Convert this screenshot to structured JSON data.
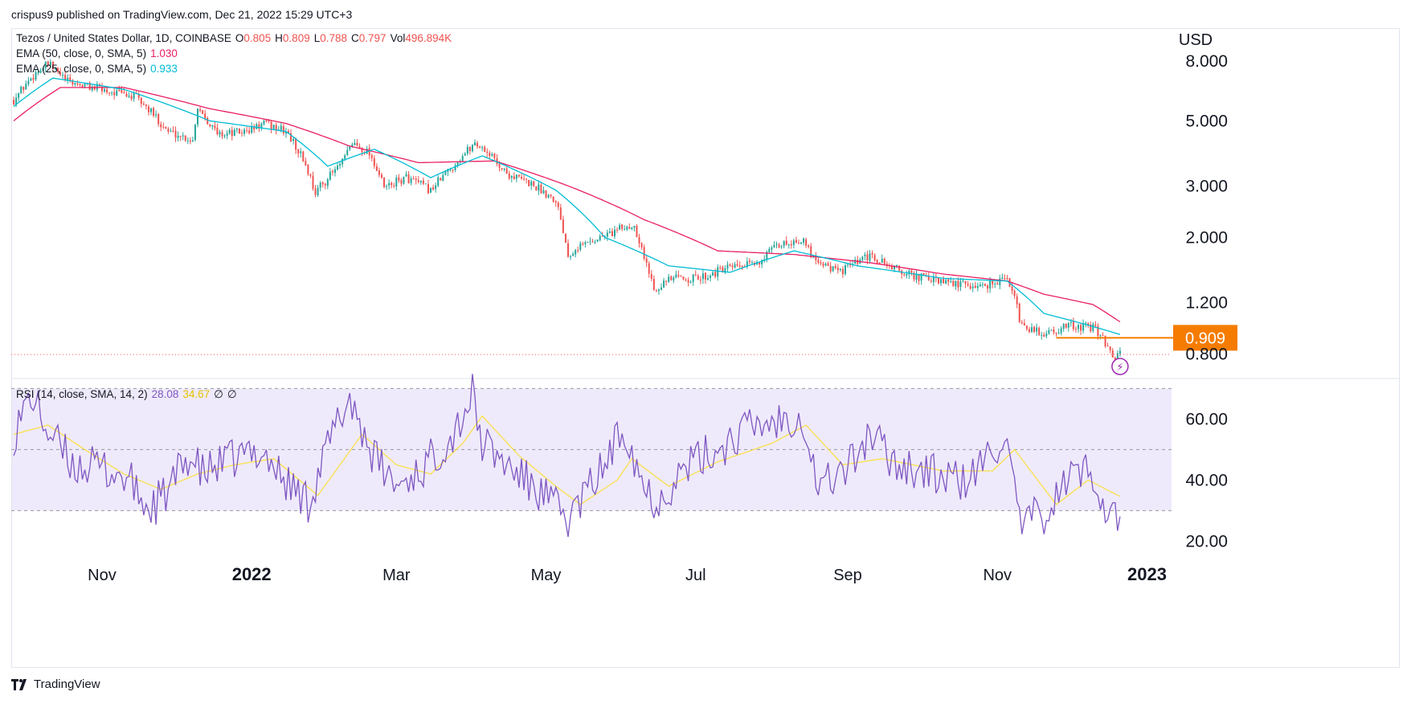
{
  "header": {
    "text": "crispus9 published on TradingView.com, Dec 21, 2022 15:29 UTC+3"
  },
  "legend": {
    "symbol": "Tezos / United States Dollar, 1D, COINBASE",
    "o_label": "O",
    "o": "0.805",
    "h_label": "H",
    "h": "0.809",
    "l_label": "L",
    "l": "0.788",
    "c_label": "C",
    "c": "0.797",
    "vol_label": "Vol",
    "vol": "496.894K",
    "ema50_label": "EMA (50, close, 0, SMA, 5)",
    "ema50_value": "1.030",
    "ema25_label": "EMA (25, close, 0, SMA, 5)",
    "ema25_value": "0.933",
    "rsi_label": "RSI (14, close, SMA, 14, 2)",
    "rsi_value": "28.08",
    "rsi_ma_value": "34.67",
    "rsi_extra1": "∅",
    "rsi_extra2": "∅"
  },
  "currency": "USD",
  "footer": {
    "brand": "TradingView"
  },
  "colors": {
    "up": "#26a69a",
    "down": "#ef5350",
    "ema50": "#e91e63",
    "ema25": "#00bcd4",
    "rsi": "#7e57c2",
    "rsi_ma": "#f9e04b",
    "rsi_band": "#efeafb",
    "hline": "#f57c00",
    "price_line": "#ef5350"
  },
  "chart_data": [
    {
      "type": "candlestick",
      "title": "Tezos / United States Dollar, 1D, COINBASE",
      "y_scale": "log",
      "ylabel": "USD",
      "ylim": [
        0.66,
        10.3
      ],
      "y_ticks": [
        {
          "value": 8.0,
          "label": "8.000"
        },
        {
          "value": 5.0,
          "label": "5.000"
        },
        {
          "value": 3.0,
          "label": "3.000"
        },
        {
          "value": 2.0,
          "label": "2.000"
        },
        {
          "value": 1.2,
          "label": "1.200"
        },
        {
          "value": 0.8,
          "label": "0.800"
        }
      ],
      "x_ticks": [
        {
          "label": "Nov",
          "bold": false
        },
        {
          "label": "2022",
          "bold": true
        },
        {
          "label": "Mar",
          "bold": false
        },
        {
          "label": "May",
          "bold": false
        },
        {
          "label": "Jul",
          "bold": false
        },
        {
          "label": "Sep",
          "bold": false
        },
        {
          "label": "Nov",
          "bold": false
        },
        {
          "label": "2023",
          "bold": true
        }
      ],
      "price_anchors": [
        [
          "2021-09-26",
          5.9
        ],
        [
          "2021-10-05",
          7.3
        ],
        [
          "2021-10-10",
          7.8
        ],
        [
          "2021-10-18",
          6.8
        ],
        [
          "2021-11-01",
          6.4
        ],
        [
          "2021-11-15",
          6.0
        ],
        [
          "2021-11-28",
          4.6
        ],
        [
          "2021-12-08",
          4.3
        ],
        [
          "2021-12-10",
          5.6
        ],
        [
          "2021-12-18",
          4.5
        ],
        [
          "2021-12-30",
          4.6
        ],
        [
          "2022-01-06",
          4.9
        ],
        [
          "2022-01-15",
          4.6
        ],
        [
          "2022-01-22",
          3.7
        ],
        [
          "2022-01-27",
          2.85
        ],
        [
          "2022-02-07",
          3.6
        ],
        [
          "2022-02-11",
          4.2
        ],
        [
          "2022-02-18",
          3.9
        ],
        [
          "2022-02-24",
          2.95
        ],
        [
          "2022-03-05",
          3.2
        ],
        [
          "2022-03-15",
          2.9
        ],
        [
          "2022-03-24",
          3.5
        ],
        [
          "2022-04-02",
          4.2
        ],
        [
          "2022-04-06",
          4.0
        ],
        [
          "2022-04-15",
          3.3
        ],
        [
          "2022-04-25",
          3.05
        ],
        [
          "2022-05-05",
          2.7
        ],
        [
          "2022-05-10",
          1.75
        ],
        [
          "2022-05-13",
          1.85
        ],
        [
          "2022-05-23",
          2.0
        ],
        [
          "2022-06-01",
          2.15
        ],
        [
          "2022-06-06",
          2.2
        ],
        [
          "2022-06-11",
          1.6
        ],
        [
          "2022-06-14",
          1.35
        ],
        [
          "2022-06-22",
          1.45
        ],
        [
          "2022-07-02",
          1.45
        ],
        [
          "2022-07-12",
          1.55
        ],
        [
          "2022-07-25",
          1.62
        ],
        [
          "2022-08-05",
          1.9
        ],
        [
          "2022-08-13",
          1.97
        ],
        [
          "2022-08-18",
          1.72
        ],
        [
          "2022-08-28",
          1.52
        ],
        [
          "2022-09-10",
          1.72
        ],
        [
          "2022-09-25",
          1.5
        ],
        [
          "2022-10-10",
          1.4
        ],
        [
          "2022-10-25",
          1.36
        ],
        [
          "2022-11-04",
          1.45
        ],
        [
          "2022-11-08",
          1.3
        ],
        [
          "2022-11-10",
          1.0
        ],
        [
          "2022-11-20",
          0.94
        ],
        [
          "2022-12-01",
          1.0
        ],
        [
          "2022-12-10",
          0.98
        ],
        [
          "2022-12-14",
          0.92
        ],
        [
          "2022-12-18",
          0.76
        ],
        [
          "2022-12-21",
          0.797
        ]
      ],
      "ema50_anchors": [
        [
          "2021-09-26",
          5.0
        ],
        [
          "2021-10-15",
          6.5
        ],
        [
          "2021-11-10",
          6.5
        ],
        [
          "2021-12-15",
          5.5
        ],
        [
          "2022-01-15",
          4.9
        ],
        [
          "2022-02-10",
          4.1
        ],
        [
          "2022-03-10",
          3.6
        ],
        [
          "2022-04-10",
          3.65
        ],
        [
          "2022-05-10",
          3.0
        ],
        [
          "2022-06-10",
          2.3
        ],
        [
          "2022-07-10",
          1.8
        ],
        [
          "2022-08-10",
          1.75
        ],
        [
          "2022-09-10",
          1.64
        ],
        [
          "2022-10-10",
          1.5
        ],
        [
          "2022-11-05",
          1.42
        ],
        [
          "2022-11-20",
          1.28
        ],
        [
          "2022-12-10",
          1.18
        ],
        [
          "2022-12-21",
          1.03
        ]
      ],
      "ema25_anchors": [
        [
          "2021-09-26",
          5.6
        ],
        [
          "2021-10-12",
          7.0
        ],
        [
          "2021-11-10",
          6.4
        ],
        [
          "2021-12-15",
          5.0
        ],
        [
          "2022-01-15",
          4.6
        ],
        [
          "2022-02-01",
          3.5
        ],
        [
          "2022-02-20",
          4.0
        ],
        [
          "2022-03-15",
          3.2
        ],
        [
          "2022-04-05",
          3.8
        ],
        [
          "2022-05-05",
          2.9
        ],
        [
          "2022-05-25",
          2.0
        ],
        [
          "2022-06-20",
          1.6
        ],
        [
          "2022-07-15",
          1.52
        ],
        [
          "2022-08-10",
          1.8
        ],
        [
          "2022-09-05",
          1.6
        ],
        [
          "2022-10-10",
          1.45
        ],
        [
          "2022-11-05",
          1.42
        ],
        [
          "2022-11-20",
          1.1
        ],
        [
          "2022-12-05",
          1.02
        ],
        [
          "2022-12-21",
          0.933
        ]
      ],
      "horizontal_line": {
        "value": 0.909,
        "label": "0.909",
        "from": "2022-11-25"
      },
      "last_price_line": {
        "value": 0.797
      }
    },
    {
      "type": "line",
      "title": "RSI (14, close, SMA, 14, 2)",
      "ylim": [
        13,
        73
      ],
      "y_ticks": [
        {
          "value": 60,
          "label": "60.00"
        },
        {
          "value": 40,
          "label": "40.00"
        },
        {
          "value": 20,
          "label": "20.00"
        }
      ],
      "band": [
        30,
        70
      ],
      "midline": 50,
      "rsi_anchors": [
        [
          "2021-09-26",
          55
        ],
        [
          "2021-10-03",
          68
        ],
        [
          "2021-10-10",
          56
        ],
        [
          "2021-10-20",
          45
        ],
        [
          "2021-11-01",
          44
        ],
        [
          "2021-11-12",
          40
        ],
        [
          "2021-11-20",
          30
        ],
        [
          "2021-11-28",
          36
        ],
        [
          "2021-12-06",
          48
        ],
        [
          "2021-12-12",
          42
        ],
        [
          "2021-12-22",
          46
        ],
        [
          "2022-01-05",
          50
        ],
        [
          "2022-01-14",
          40
        ],
        [
          "2022-01-24",
          33
        ],
        [
          "2022-02-03",
          55
        ],
        [
          "2022-02-10",
          67
        ],
        [
          "2022-02-20",
          47
        ],
        [
          "2022-03-01",
          38
        ],
        [
          "2022-03-12",
          44
        ],
        [
          "2022-03-24",
          55
        ],
        [
          "2022-04-01",
          68
        ],
        [
          "2022-04-05",
          52
        ],
        [
          "2022-04-15",
          45
        ],
        [
          "2022-04-30",
          35
        ],
        [
          "2022-05-10",
          27
        ],
        [
          "2022-05-15",
          33
        ],
        [
          "2022-05-25",
          45
        ],
        [
          "2022-06-02",
          58
        ],
        [
          "2022-06-10",
          38
        ],
        [
          "2022-06-15",
          33
        ],
        [
          "2022-06-28",
          45
        ],
        [
          "2022-07-10",
          50
        ],
        [
          "2022-07-22",
          57
        ],
        [
          "2022-08-05",
          60
        ],
        [
          "2022-08-13",
          62
        ],
        [
          "2022-08-20",
          38
        ],
        [
          "2022-09-01",
          44
        ],
        [
          "2022-09-10",
          55
        ],
        [
          "2022-09-20",
          46
        ],
        [
          "2022-10-05",
          42
        ],
        [
          "2022-10-20",
          39
        ],
        [
          "2022-11-04",
          55
        ],
        [
          "2022-11-10",
          25
        ],
        [
          "2022-11-22",
          30
        ],
        [
          "2022-12-01",
          42
        ],
        [
          "2022-12-10",
          43
        ],
        [
          "2022-12-16",
          29
        ],
        [
          "2022-12-21",
          28.08
        ]
      ],
      "rsi_ma_anchors": [
        [
          "2021-09-26",
          55
        ],
        [
          "2021-10-10",
          58
        ],
        [
          "2021-10-25",
          50
        ],
        [
          "2021-11-10",
          42
        ],
        [
          "2021-11-25",
          37
        ],
        [
          "2021-12-10",
          42
        ],
        [
          "2021-12-25",
          45
        ],
        [
          "2022-01-10",
          47
        ],
        [
          "2022-01-28",
          35
        ],
        [
          "2022-02-15",
          55
        ],
        [
          "2022-03-01",
          45
        ],
        [
          "2022-03-15",
          42
        ],
        [
          "2022-03-28",
          52
        ],
        [
          "2022-04-05",
          61
        ],
        [
          "2022-04-20",
          48
        ],
        [
          "2022-05-05",
          38
        ],
        [
          "2022-05-15",
          32
        ],
        [
          "2022-05-30",
          40
        ],
        [
          "2022-06-05",
          47
        ],
        [
          "2022-06-20",
          38
        ],
        [
          "2022-07-10",
          46
        ],
        [
          "2022-08-01",
          52
        ],
        [
          "2022-08-15",
          58
        ],
        [
          "2022-08-30",
          45
        ],
        [
          "2022-09-15",
          47
        ],
        [
          "2022-10-10",
          43
        ],
        [
          "2022-10-30",
          43
        ],
        [
          "2022-11-08",
          50
        ],
        [
          "2022-11-25",
          32
        ],
        [
          "2022-12-08",
          40
        ],
        [
          "2022-12-21",
          34.67
        ]
      ]
    }
  ]
}
